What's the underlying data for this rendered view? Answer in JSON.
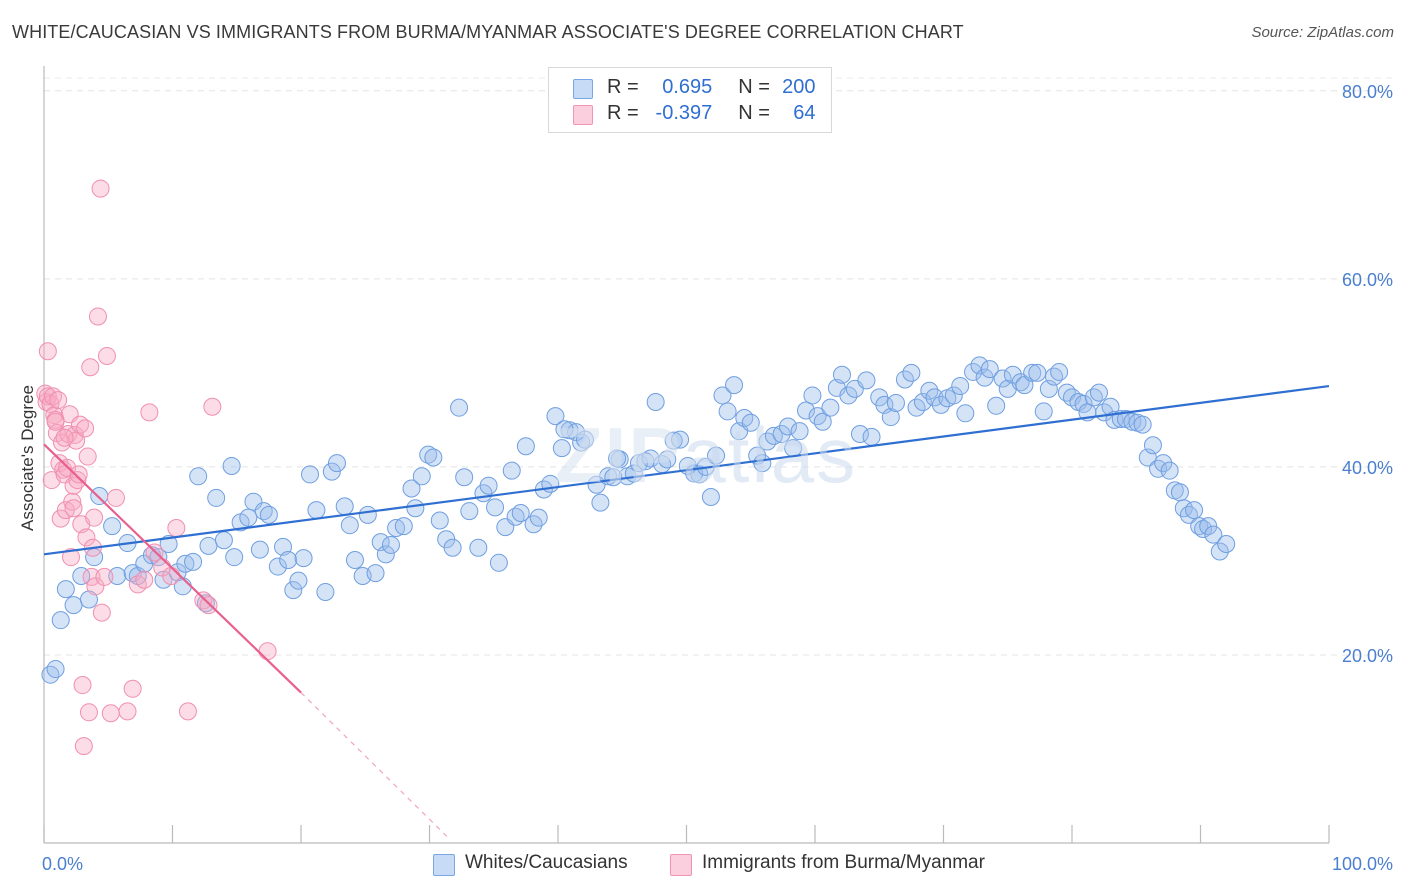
{
  "title": "WHITE/CAUCASIAN VS IMMIGRANTS FROM BURMA/MYANMAR ASSOCIATE'S DEGREE CORRELATION CHART",
  "source": "Source: ZipAtlas.com",
  "watermark": {
    "bold": "ZIP",
    "light": "atlas"
  },
  "legend": {
    "rows": [
      {
        "r_label": "R = ",
        "r_value": "0.695",
        "n_label": "N = ",
        "n_value": "200",
        "color": "#9bbcec"
      },
      {
        "r_label": "R = ",
        "r_value": "-0.397",
        "n_label": "N = ",
        "n_value": "64",
        "color": "#f4a7c0"
      }
    ]
  },
  "bottom_legend": [
    {
      "label": "Whites/Caucasians",
      "color": "#9bbcec"
    },
    {
      "label": "Immigrants from Burma/Myanmar",
      "color": "#f4a7c0"
    }
  ],
  "chart_data": {
    "type": "scatter",
    "title": "WHITE/CAUCASIAN VS IMMIGRANTS FROM BURMA/MYANMAR ASSOCIATE'S DEGREE CORRELATION CHART",
    "xlabel": "",
    "ylabel": "Associate's Degree",
    "xlim": [
      0,
      100
    ],
    "ylim": [
      0,
      82
    ],
    "x_tick_labels": [
      "0.0%",
      "100.0%"
    ],
    "y_ticks": [
      20,
      40,
      60,
      80
    ],
    "y_tick_labels": [
      "20.0%",
      "40.0%",
      "60.0%",
      "80.0%"
    ],
    "grid": true,
    "legend_position": "top-center",
    "series": [
      {
        "name": "Whites/Caucasians",
        "color": "#7aa6e6",
        "trend": {
          "x": [
            0,
            100
          ],
          "y": [
            30.7,
            48.6
          ]
        },
        "points": [
          [
            0.5,
            17.9
          ],
          [
            0.9,
            18.5
          ],
          [
            1.3,
            23.7
          ],
          [
            1.7,
            27.0
          ],
          [
            2.3,
            25.3
          ],
          [
            2.9,
            28.4
          ],
          [
            3.5,
            25.9
          ],
          [
            3.9,
            30.4
          ],
          [
            4.3,
            36.9
          ],
          [
            5.3,
            33.7
          ],
          [
            5.7,
            28.4
          ],
          [
            6.5,
            31.9
          ],
          [
            6.9,
            28.7
          ],
          [
            7.3,
            28.4
          ],
          [
            7.8,
            29.7
          ],
          [
            8.4,
            30.6
          ],
          [
            8.9,
            30.4
          ],
          [
            9.3,
            28.0
          ],
          [
            9.7,
            31.8
          ],
          [
            10.4,
            28.8
          ],
          [
            10.8,
            27.3
          ],
          [
            11.0,
            29.7
          ],
          [
            11.6,
            29.9
          ],
          [
            12.0,
            39.0
          ],
          [
            12.6,
            25.5
          ],
          [
            12.8,
            31.6
          ],
          [
            13.4,
            36.7
          ],
          [
            14.0,
            32.2
          ],
          [
            14.6,
            40.1
          ],
          [
            14.8,
            30.4
          ],
          [
            15.3,
            34.1
          ],
          [
            15.9,
            34.6
          ],
          [
            16.3,
            36.3
          ],
          [
            16.8,
            31.2
          ],
          [
            17.1,
            35.3
          ],
          [
            17.5,
            34.9
          ],
          [
            18.2,
            29.4
          ],
          [
            18.6,
            31.5
          ],
          [
            19.0,
            30.1
          ],
          [
            19.4,
            26.9
          ],
          [
            19.8,
            27.9
          ],
          [
            20.2,
            30.3
          ],
          [
            20.7,
            39.2
          ],
          [
            21.2,
            35.4
          ],
          [
            21.9,
            26.7
          ],
          [
            22.4,
            39.5
          ],
          [
            22.8,
            40.4
          ],
          [
            23.4,
            35.8
          ],
          [
            23.8,
            33.8
          ],
          [
            24.2,
            30.1
          ],
          [
            24.8,
            28.4
          ],
          [
            25.2,
            34.9
          ],
          [
            25.8,
            28.7
          ],
          [
            26.2,
            32.0
          ],
          [
            26.6,
            30.7
          ],
          [
            27.0,
            31.7
          ],
          [
            27.4,
            33.5
          ],
          [
            28.0,
            33.7
          ],
          [
            28.6,
            37.7
          ],
          [
            28.9,
            35.6
          ],
          [
            29.4,
            39.0
          ],
          [
            29.9,
            41.3
          ],
          [
            30.3,
            41.0
          ],
          [
            30.8,
            34.3
          ],
          [
            31.3,
            32.3
          ],
          [
            31.8,
            31.4
          ],
          [
            32.3,
            46.3
          ],
          [
            32.7,
            38.9
          ],
          [
            33.1,
            35.3
          ],
          [
            33.8,
            31.4
          ],
          [
            34.2,
            37.2
          ],
          [
            34.6,
            38.0
          ],
          [
            35.1,
            35.7
          ],
          [
            35.4,
            29.8
          ],
          [
            35.9,
            33.6
          ],
          [
            36.4,
            39.6
          ],
          [
            36.7,
            34.7
          ],
          [
            37.1,
            35.1
          ],
          [
            37.5,
            42.2
          ],
          [
            38.1,
            33.9
          ],
          [
            38.5,
            34.6
          ],
          [
            38.9,
            37.6
          ],
          [
            39.4,
            38.2
          ],
          [
            39.8,
            45.4
          ],
          [
            40.3,
            42.0
          ],
          [
            40.9,
            43.9
          ],
          [
            41.4,
            43.7
          ],
          [
            41.8,
            42.6
          ],
          [
            42.1,
            42.9
          ],
          [
            43.0,
            38.1
          ],
          [
            43.3,
            36.2
          ],
          [
            43.9,
            39.0
          ],
          [
            44.3,
            38.9
          ],
          [
            44.8,
            40.8
          ],
          [
            45.4,
            39.0
          ],
          [
            45.9,
            39.3
          ],
          [
            46.3,
            40.4
          ],
          [
            46.8,
            40.6
          ],
          [
            47.2,
            40.9
          ],
          [
            47.6,
            46.9
          ],
          [
            48.1,
            40.3
          ],
          [
            48.5,
            40.8
          ],
          [
            49.0,
            42.8
          ],
          [
            49.5,
            42.9
          ],
          [
            50.1,
            40.1
          ],
          [
            50.6,
            39.3
          ],
          [
            51.0,
            39.2
          ],
          [
            51.5,
            40.0
          ],
          [
            51.9,
            36.8
          ],
          [
            52.3,
            41.2
          ],
          [
            52.8,
            47.6
          ],
          [
            53.2,
            45.9
          ],
          [
            53.7,
            48.7
          ],
          [
            54.1,
            43.8
          ],
          [
            54.5,
            45.2
          ],
          [
            55.0,
            44.7
          ],
          [
            55.5,
            41.2
          ],
          [
            55.9,
            40.4
          ],
          [
            56.3,
            42.7
          ],
          [
            56.8,
            43.3
          ],
          [
            57.4,
            43.5
          ],
          [
            57.9,
            44.3
          ],
          [
            58.3,
            42.0
          ],
          [
            58.8,
            43.8
          ],
          [
            59.3,
            46.0
          ],
          [
            59.8,
            47.6
          ],
          [
            60.2,
            45.4
          ],
          [
            60.6,
            44.8
          ],
          [
            61.2,
            46.3
          ],
          [
            61.7,
            48.4
          ],
          [
            62.1,
            49.8
          ],
          [
            62.6,
            47.6
          ],
          [
            63.1,
            48.3
          ],
          [
            63.5,
            43.5
          ],
          [
            64.0,
            49.2
          ],
          [
            64.4,
            43.2
          ],
          [
            65.0,
            47.4
          ],
          [
            65.4,
            46.6
          ],
          [
            65.9,
            45.3
          ],
          [
            66.3,
            46.8
          ],
          [
            67.0,
            49.3
          ],
          [
            67.5,
            50.0
          ],
          [
            67.9,
            46.3
          ],
          [
            68.4,
            46.9
          ],
          [
            68.9,
            48.1
          ],
          [
            69.3,
            47.4
          ],
          [
            69.8,
            46.6
          ],
          [
            70.3,
            47.3
          ],
          [
            70.8,
            47.6
          ],
          [
            71.3,
            48.6
          ],
          [
            71.7,
            45.7
          ],
          [
            72.3,
            50.1
          ],
          [
            72.8,
            50.8
          ],
          [
            73.2,
            49.5
          ],
          [
            73.6,
            50.4
          ],
          [
            74.1,
            46.5
          ],
          [
            74.6,
            49.4
          ],
          [
            75.0,
            48.3
          ],
          [
            75.4,
            49.8
          ],
          [
            76.0,
            49.0
          ],
          [
            76.3,
            48.7
          ],
          [
            76.9,
            50.0
          ],
          [
            77.3,
            50.0
          ],
          [
            77.8,
            45.9
          ],
          [
            78.2,
            48.3
          ],
          [
            78.6,
            49.6
          ],
          [
            79.0,
            50.1
          ],
          [
            79.6,
            47.9
          ],
          [
            80.0,
            47.4
          ],
          [
            80.5,
            46.9
          ],
          [
            80.9,
            46.7
          ],
          [
            81.2,
            45.8
          ],
          [
            81.7,
            47.4
          ],
          [
            82.1,
            47.9
          ],
          [
            82.5,
            45.8
          ],
          [
            83.0,
            46.4
          ],
          [
            83.3,
            45.0
          ],
          [
            83.8,
            45.1
          ],
          [
            84.2,
            45.1
          ],
          [
            84.7,
            44.8
          ],
          [
            85.1,
            44.7
          ],
          [
            85.5,
            44.5
          ],
          [
            85.9,
            41.0
          ],
          [
            86.3,
            42.3
          ],
          [
            86.7,
            39.8
          ],
          [
            87.1,
            40.4
          ],
          [
            87.6,
            39.6
          ],
          [
            88.0,
            37.5
          ],
          [
            88.4,
            37.3
          ],
          [
            88.7,
            35.6
          ],
          [
            89.1,
            34.9
          ],
          [
            89.5,
            35.4
          ],
          [
            89.9,
            33.7
          ],
          [
            90.2,
            33.4
          ],
          [
            90.6,
            33.7
          ],
          [
            91.0,
            32.8
          ],
          [
            91.5,
            31.0
          ],
          [
            92.0,
            31.8
          ],
          [
            40.5,
            44.0
          ],
          [
            44.6,
            40.9
          ]
        ]
      },
      {
        "name": "Immigrants from Burma/Myanmar",
        "color": "#f294b3",
        "trend": {
          "x": [
            0,
            20
          ],
          "y": [
            42.4,
            16.0
          ]
        },
        "trend_dashed": {
          "x": [
            20,
            31.5
          ],
          "y": [
            16.0,
            0.5
          ]
        },
        "points": [
          [
            0.1,
            47.8
          ],
          [
            0.2,
            46.9
          ],
          [
            0.3,
            47.5
          ],
          [
            0.3,
            52.3
          ],
          [
            0.5,
            46.7
          ],
          [
            0.6,
            38.6
          ],
          [
            0.7,
            47.5
          ],
          [
            0.8,
            45.5
          ],
          [
            0.9,
            45.0
          ],
          [
            1.0,
            43.6
          ],
          [
            1.1,
            47.1
          ],
          [
            1.2,
            40.4
          ],
          [
            1.3,
            34.5
          ],
          [
            1.4,
            42.6
          ],
          [
            1.5,
            39.7
          ],
          [
            1.6,
            39.2
          ],
          [
            1.7,
            35.4
          ],
          [
            1.8,
            39.9
          ],
          [
            1.9,
            43.5
          ],
          [
            2.0,
            45.6
          ],
          [
            2.1,
            30.4
          ],
          [
            2.2,
            36.3
          ],
          [
            2.3,
            38.0
          ],
          [
            2.4,
            43.4
          ],
          [
            2.5,
            42.8
          ],
          [
            2.6,
            38.6
          ],
          [
            2.7,
            39.2
          ],
          [
            2.8,
            44.5
          ],
          [
            2.9,
            33.9
          ],
          [
            3.0,
            16.8
          ],
          [
            3.1,
            10.3
          ],
          [
            3.2,
            44.1
          ],
          [
            3.3,
            32.5
          ],
          [
            3.4,
            41.1
          ],
          [
            3.5,
            13.9
          ],
          [
            3.6,
            50.6
          ],
          [
            3.7,
            28.3
          ],
          [
            3.8,
            31.4
          ],
          [
            3.9,
            34.6
          ],
          [
            4.0,
            27.3
          ],
          [
            4.2,
            56.0
          ],
          [
            4.4,
            69.6
          ],
          [
            4.5,
            24.5
          ],
          [
            4.7,
            28.3
          ],
          [
            4.9,
            51.8
          ],
          [
            5.2,
            13.8
          ],
          [
            5.6,
            36.7
          ],
          [
            6.5,
            14.0
          ],
          [
            6.9,
            16.4
          ],
          [
            7.3,
            27.5
          ],
          [
            7.8,
            28.0
          ],
          [
            8.2,
            45.8
          ],
          [
            8.6,
            30.9
          ],
          [
            9.2,
            29.3
          ],
          [
            9.9,
            28.4
          ],
          [
            10.3,
            33.5
          ],
          [
            11.2,
            14.0
          ],
          [
            12.4,
            25.8
          ],
          [
            12.8,
            25.3
          ],
          [
            13.1,
            46.4
          ],
          [
            17.4,
            20.4
          ],
          [
            2.3,
            35.6
          ],
          [
            1.6,
            43.1
          ],
          [
            0.9,
            44.8
          ]
        ]
      }
    ]
  }
}
